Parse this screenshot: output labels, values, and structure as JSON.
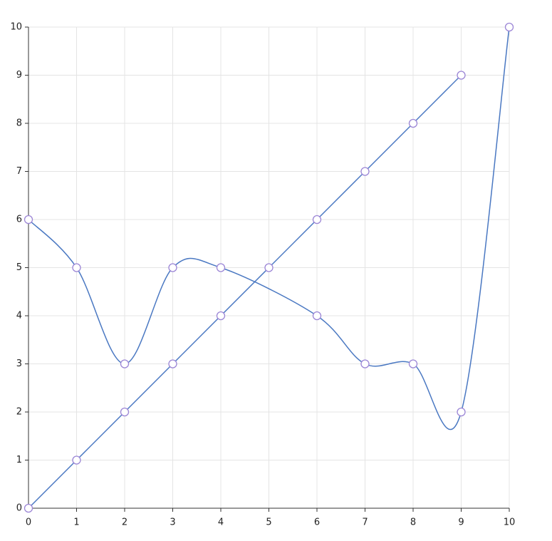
{
  "chart_data": {
    "type": "line",
    "xlim": [
      0,
      10
    ],
    "ylim": [
      0,
      10
    ],
    "xticks": [
      0,
      1,
      2,
      3,
      4,
      5,
      6,
      7,
      8,
      9,
      10
    ],
    "yticks": [
      0,
      1,
      2,
      3,
      4,
      5,
      6,
      7,
      8,
      9,
      10
    ],
    "grid": true,
    "smooth": true,
    "marker_color": "#9c86d6",
    "series": [
      {
        "color": "#4a78c2",
        "x": [
          0,
          1,
          2,
          3,
          4,
          5,
          6,
          7,
          8,
          9
        ],
        "values": [
          0,
          1,
          2,
          3,
          4,
          5,
          6,
          7,
          8,
          9
        ]
      },
      {
        "color": "#4a78c2",
        "x": [
          0,
          1,
          2,
          3,
          4,
          6,
          7,
          8,
          9,
          10
        ],
        "values": [
          6,
          5,
          3,
          5,
          5,
          4,
          3,
          3,
          2,
          10
        ]
      }
    ]
  }
}
